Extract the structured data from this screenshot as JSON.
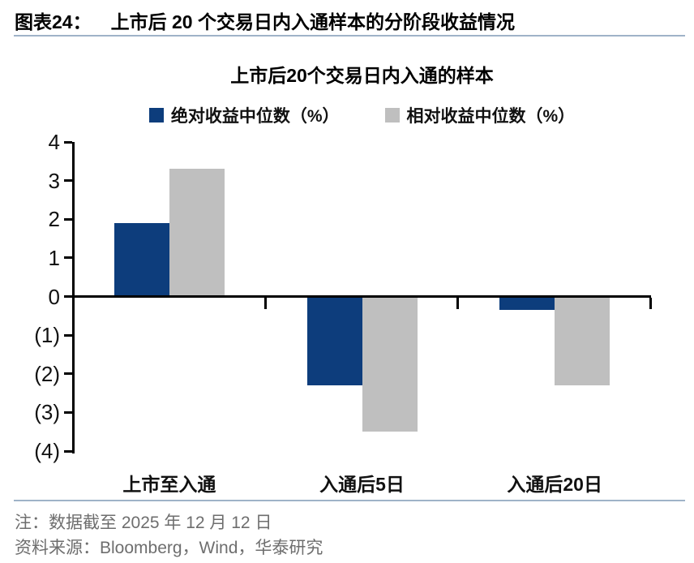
{
  "header": {
    "label": "图表24：",
    "title": "上市后 20 个交易日内入通样本的分阶段收益情况"
  },
  "chart_data": {
    "type": "bar",
    "title": "上市后20个交易日内入通的样本",
    "categories": [
      "上市至入通",
      "入通后5日",
      "入通后20日"
    ],
    "series": [
      {
        "name": "绝对收益中位数（%）",
        "color": "#0D3D7C",
        "values": [
          1.9,
          -2.3,
          -0.35
        ]
      },
      {
        "name": "相对收益中位数（%）",
        "color": "#BFBFBF",
        "values": [
          3.3,
          -3.5,
          -2.3
        ]
      }
    ],
    "ylim": [
      -4,
      4
    ],
    "ytick_labels": [
      "4",
      "3",
      "2",
      "1",
      "0",
      "(1)",
      "(2)",
      "(3)",
      "(4)"
    ],
    "grid": false,
    "legend_position": "top"
  },
  "colors": {
    "accent_navy": "#0D3D7C",
    "accent_gray": "#BFBFBF",
    "rule_blue": "#9FB3C8",
    "note_gray": "#6E6E6E"
  },
  "footer": {
    "note": "注：数据截至 2025 年 12 月 12 日",
    "source": "资料来源：Bloomberg，Wind，华泰研究"
  }
}
